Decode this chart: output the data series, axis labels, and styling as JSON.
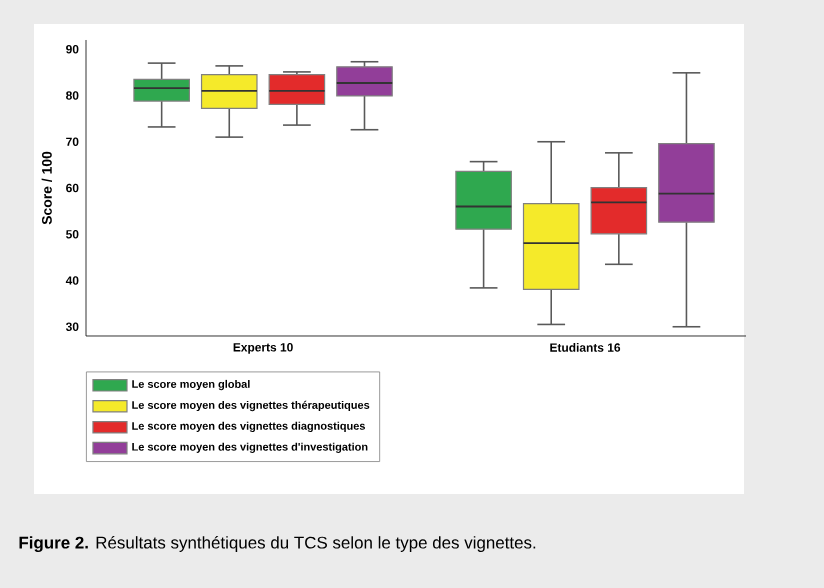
{
  "chart_data": {
    "type": "box",
    "ylabel": "Score / 100",
    "categories": [
      "Experts 10",
      "Etudiants 16"
    ],
    "ylim": [
      28,
      92
    ],
    "yticks": [
      30,
      40,
      50,
      60,
      70,
      80,
      90
    ],
    "legend": "bottom",
    "grid": false,
    "series": [
      {
        "name": "Le score moyen global",
        "color": "#2fa84f",
        "boxes": [
          {
            "low": 73.2,
            "q1": 78.8,
            "median": 81.6,
            "q3": 83.5,
            "high": 87.0
          },
          {
            "low": 38.4,
            "q1": 51.1,
            "median": 56.0,
            "q3": 63.6,
            "high": 65.7
          }
        ]
      },
      {
        "name": "Le score moyen des vignettes thérapeutiques",
        "color": "#f5ea2a",
        "boxes": [
          {
            "low": 71.0,
            "q1": 77.2,
            "median": 81.0,
            "q3": 84.5,
            "high": 86.4
          },
          {
            "low": 30.5,
            "q1": 38.1,
            "median": 48.1,
            "q3": 56.6,
            "high": 70.0
          }
        ]
      },
      {
        "name": "Le score moyen des vignettes diagnostiques",
        "color": "#e32b2b",
        "boxes": [
          {
            "low": 73.6,
            "q1": 78.1,
            "median": 81.0,
            "q3": 84.5,
            "high": 85.1
          },
          {
            "low": 43.5,
            "q1": 50.1,
            "median": 56.9,
            "q3": 60.1,
            "high": 67.6
          }
        ]
      },
      {
        "name": "Le score moyen des vignettes d'investigation",
        "color": "#923e99",
        "boxes": [
          {
            "low": 72.6,
            "q1": 79.9,
            "median": 82.7,
            "q3": 86.2,
            "high": 87.3
          },
          {
            "low": 30.0,
            "q1": 52.6,
            "median": 58.8,
            "q3": 69.6,
            "high": 84.9
          }
        ]
      }
    ],
    "annotations": [
      "**Figure 2.** Résultats synthétiques du TCS selon le type des vignettes."
    ]
  }
}
